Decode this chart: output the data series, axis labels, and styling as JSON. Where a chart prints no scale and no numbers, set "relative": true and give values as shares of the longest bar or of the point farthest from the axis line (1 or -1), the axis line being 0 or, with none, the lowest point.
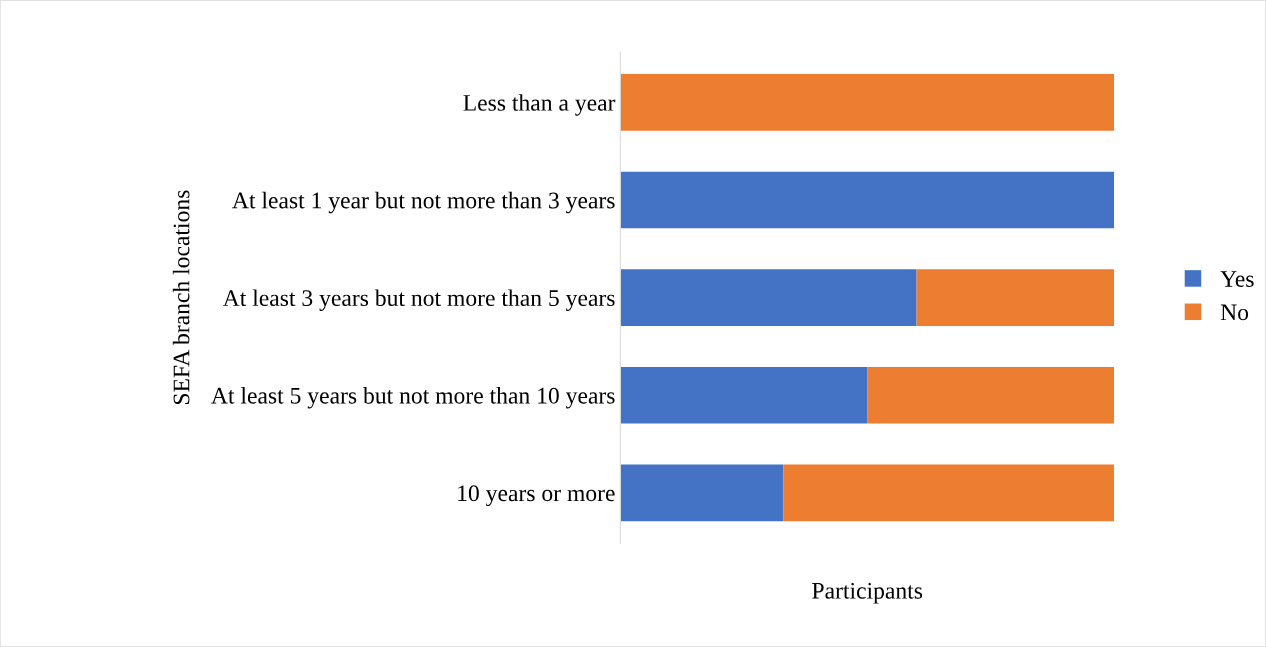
{
  "chart_data": {
    "type": "bar",
    "orientation": "horizontal",
    "stacked": true,
    "relative": true,
    "categories": [
      "Less than a year",
      "At least 1 year but not more than 3 years",
      "At least 3 years but not more than 5 years",
      "At least 5 years but not more than 10 years",
      "10 years or more"
    ],
    "series": [
      {
        "name": "Yes",
        "color": "#4472c4",
        "values": [
          0,
          1,
          0.6,
          0.5,
          0.33
        ]
      },
      {
        "name": "No",
        "color": "#ed7d31",
        "values": [
          1,
          0,
          0.4,
          0.5,
          0.67
        ]
      }
    ],
    "xlabel": "Participants",
    "ylabel": "SEFA branch locations",
    "legend": "right"
  }
}
